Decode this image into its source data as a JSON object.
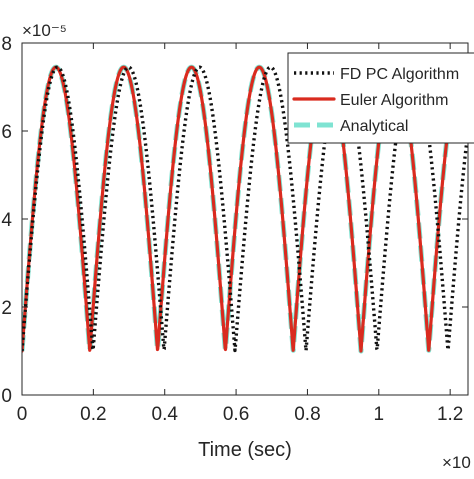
{
  "chart_data": {
    "type": "line",
    "title": "",
    "xlabel": "Time (sec)",
    "ylabel": "",
    "x_exponent_label": "×10",
    "y_exponent_label": "×10⁻⁵",
    "xlim": [
      0,
      1.25
    ],
    "ylim": [
      0,
      8
    ],
    "x_ticks": [
      0,
      0.2,
      0.4,
      0.6,
      0.8,
      1,
      1.2
    ],
    "x_tick_labels": [
      "0",
      "0.2",
      "0.4",
      "0.6",
      "0.8",
      "1",
      "1.2"
    ],
    "y_ticks": [
      0,
      2,
      4,
      6,
      8
    ],
    "y_tick_labels": [
      "0",
      "2",
      "4",
      "6",
      "8"
    ],
    "grid": false,
    "legend_position": "top-right",
    "series": [
      {
        "name": "FD PC Algorithm",
        "color": "#111111",
        "style": "dotted",
        "period": 0.199,
        "peak": 7.45,
        "trough": 1.0,
        "x_end": 1.25
      },
      {
        "name": "Euler Algorithm",
        "color": "#d92b1f",
        "style": "solid",
        "period": 0.19,
        "peak": 7.45,
        "trough": 1.0,
        "x_end": 1.25
      },
      {
        "name": "Analytical",
        "color": "#7fe3d2",
        "style": "dashed",
        "period": 0.19,
        "peak": 7.45,
        "trough": 1.0,
        "x_end": 1.25
      }
    ]
  }
}
